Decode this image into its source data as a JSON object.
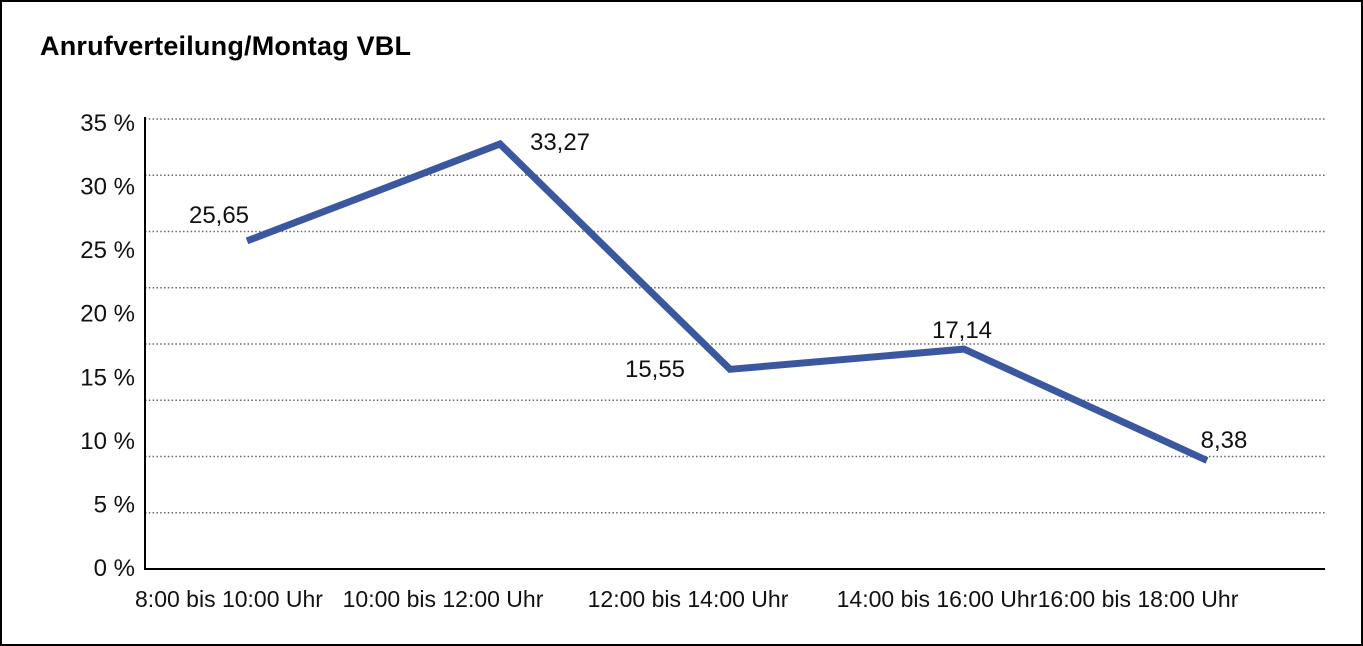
{
  "chart_data": {
    "type": "line",
    "title": "Anrufverteilung/Montag VBL",
    "categories": [
      "8:00 bis 10:00 Uhr",
      "10:00 bis 12:00 Uhr",
      "12:00 bis 14:00 Uhr",
      "14:00 bis 16:00 Uhr",
      "16:00 bis 18:00 Uhr"
    ],
    "series": [
      {
        "name": "Anrufverteilung Montag VBL",
        "values": [
          25.65,
          33.27,
          15.55,
          17.14,
          8.38
        ],
        "value_labels": [
          "25,65",
          "33,27",
          "15,55",
          "17,14",
          "8,38"
        ]
      }
    ],
    "xlabel": "",
    "ylabel": "",
    "ylim": [
      0,
      35
    ],
    "yticks": [
      35,
      30,
      25,
      20,
      15,
      10,
      5,
      0
    ],
    "ytick_labels": [
      "35 %",
      "30 %",
      "25 %",
      "20 %",
      "15 %",
      "10 %",
      "5 %",
      "0 %"
    ],
    "grid": "horizontal-dotted",
    "legend_position": "none",
    "line_color": "#3A57A0",
    "axis_color": "#000000",
    "grid_color": "#666666",
    "text_color": "#111111"
  }
}
